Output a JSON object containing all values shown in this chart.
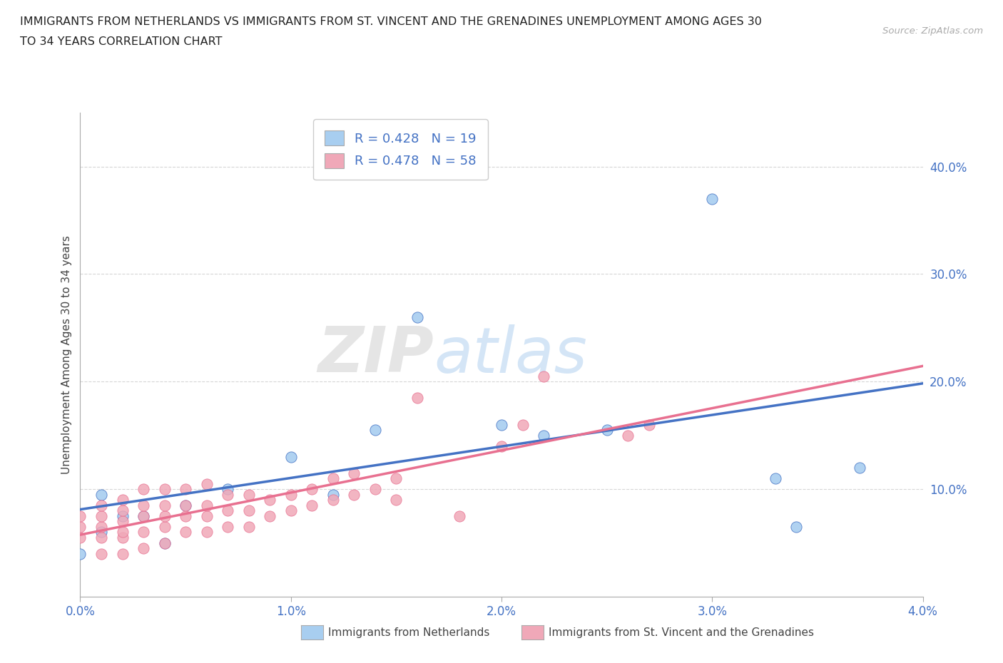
{
  "title_line1": "IMMIGRANTS FROM NETHERLANDS VS IMMIGRANTS FROM ST. VINCENT AND THE GRENADINES UNEMPLOYMENT AMONG AGES 30",
  "title_line2": "TO 34 YEARS CORRELATION CHART",
  "source_text": "Source: ZipAtlas.com",
  "ylabel": "Unemployment Among Ages 30 to 34 years",
  "legend_label1": "Immigrants from Netherlands",
  "legend_label2": "Immigrants from St. Vincent and the Grenadines",
  "xlim": [
    0.0,
    0.04
  ],
  "ylim": [
    0.0,
    0.45
  ],
  "xticks": [
    0.0,
    0.01,
    0.02,
    0.03,
    0.04
  ],
  "yticks": [
    0.1,
    0.2,
    0.3,
    0.4
  ],
  "color_netherlands": "#a8cef0",
  "color_stvincent": "#f0a8b8",
  "color_netherlands_line": "#4472c4",
  "color_stvincent_line": "#e87090",
  "netherlands_x": [
    0.0,
    0.001,
    0.001,
    0.002,
    0.003,
    0.004,
    0.005,
    0.007,
    0.01,
    0.012,
    0.014,
    0.016,
    0.02,
    0.022,
    0.025,
    0.03,
    0.033,
    0.034,
    0.037
  ],
  "netherlands_y": [
    0.04,
    0.06,
    0.095,
    0.075,
    0.075,
    0.05,
    0.085,
    0.1,
    0.13,
    0.095,
    0.155,
    0.26,
    0.16,
    0.15,
    0.155,
    0.37,
    0.11,
    0.065,
    0.12
  ],
  "stvincent_x": [
    0.0,
    0.0,
    0.0,
    0.001,
    0.001,
    0.001,
    0.001,
    0.001,
    0.002,
    0.002,
    0.002,
    0.002,
    0.002,
    0.002,
    0.003,
    0.003,
    0.003,
    0.003,
    0.003,
    0.004,
    0.004,
    0.004,
    0.004,
    0.004,
    0.005,
    0.005,
    0.005,
    0.005,
    0.006,
    0.006,
    0.006,
    0.006,
    0.007,
    0.007,
    0.007,
    0.008,
    0.008,
    0.008,
    0.009,
    0.009,
    0.01,
    0.01,
    0.011,
    0.011,
    0.012,
    0.012,
    0.013,
    0.013,
    0.014,
    0.015,
    0.015,
    0.016,
    0.018,
    0.02,
    0.021,
    0.022,
    0.026,
    0.027
  ],
  "stvincent_y": [
    0.055,
    0.065,
    0.075,
    0.04,
    0.055,
    0.065,
    0.075,
    0.085,
    0.04,
    0.055,
    0.06,
    0.07,
    0.08,
    0.09,
    0.045,
    0.06,
    0.075,
    0.085,
    0.1,
    0.05,
    0.065,
    0.075,
    0.085,
    0.1,
    0.06,
    0.075,
    0.085,
    0.1,
    0.06,
    0.075,
    0.085,
    0.105,
    0.065,
    0.08,
    0.095,
    0.065,
    0.08,
    0.095,
    0.075,
    0.09,
    0.08,
    0.095,
    0.085,
    0.1,
    0.09,
    0.11,
    0.095,
    0.115,
    0.1,
    0.09,
    0.11,
    0.185,
    0.075,
    0.14,
    0.16,
    0.205,
    0.15,
    0.16
  ],
  "watermark_zip": "ZIP",
  "watermark_atlas": "atlas",
  "background_color": "#ffffff",
  "grid_color": "#cccccc"
}
